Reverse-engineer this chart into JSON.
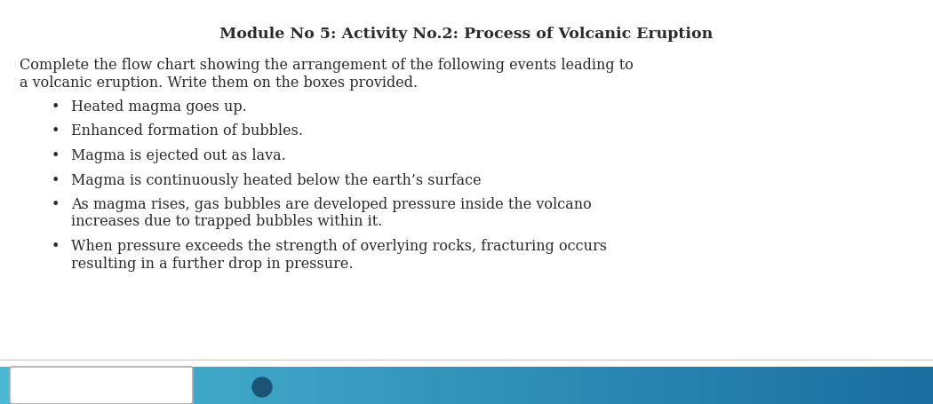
{
  "title": "Module No 5: Activity No.2: Process of Volcanic Eruption",
  "title_fontsize": 12.5,
  "intro_line1": "Complete the flow chart showing the arrangement of the following events leading to",
  "intro_line2": "a volcanic eruption. Write them on the boxes provided.",
  "bullet_items": [
    {
      "line1": "Heated magma goes up.",
      "line2": null
    },
    {
      "line1": "Enhanced formation of bubbles.",
      "line2": null
    },
    {
      "line1": "Magma is ejected out as lava.",
      "line2": null
    },
    {
      "line1": "Magma is continuously heated below the earth’s surface",
      "line2": null
    },
    {
      "line1": "As magma rises, gas bubbles are developed pressure inside the volcano",
      "line2": "increases due to trapped bubbles within it."
    },
    {
      "line1": "When pressure exceeds the strength of overlying rocks, fracturing occurs",
      "line2": "resulting in a further drop in pressure."
    }
  ],
  "body_fontsize": 11.5,
  "background_color": "#ffffff",
  "text_color": "#2b2b2b",
  "bar_color_left": "#4bb8d4",
  "bar_color_right": "#1a6ea0",
  "bottom_box_color": "#ffffff",
  "separator_color": "#c8c8c8",
  "bullet_char": "•"
}
